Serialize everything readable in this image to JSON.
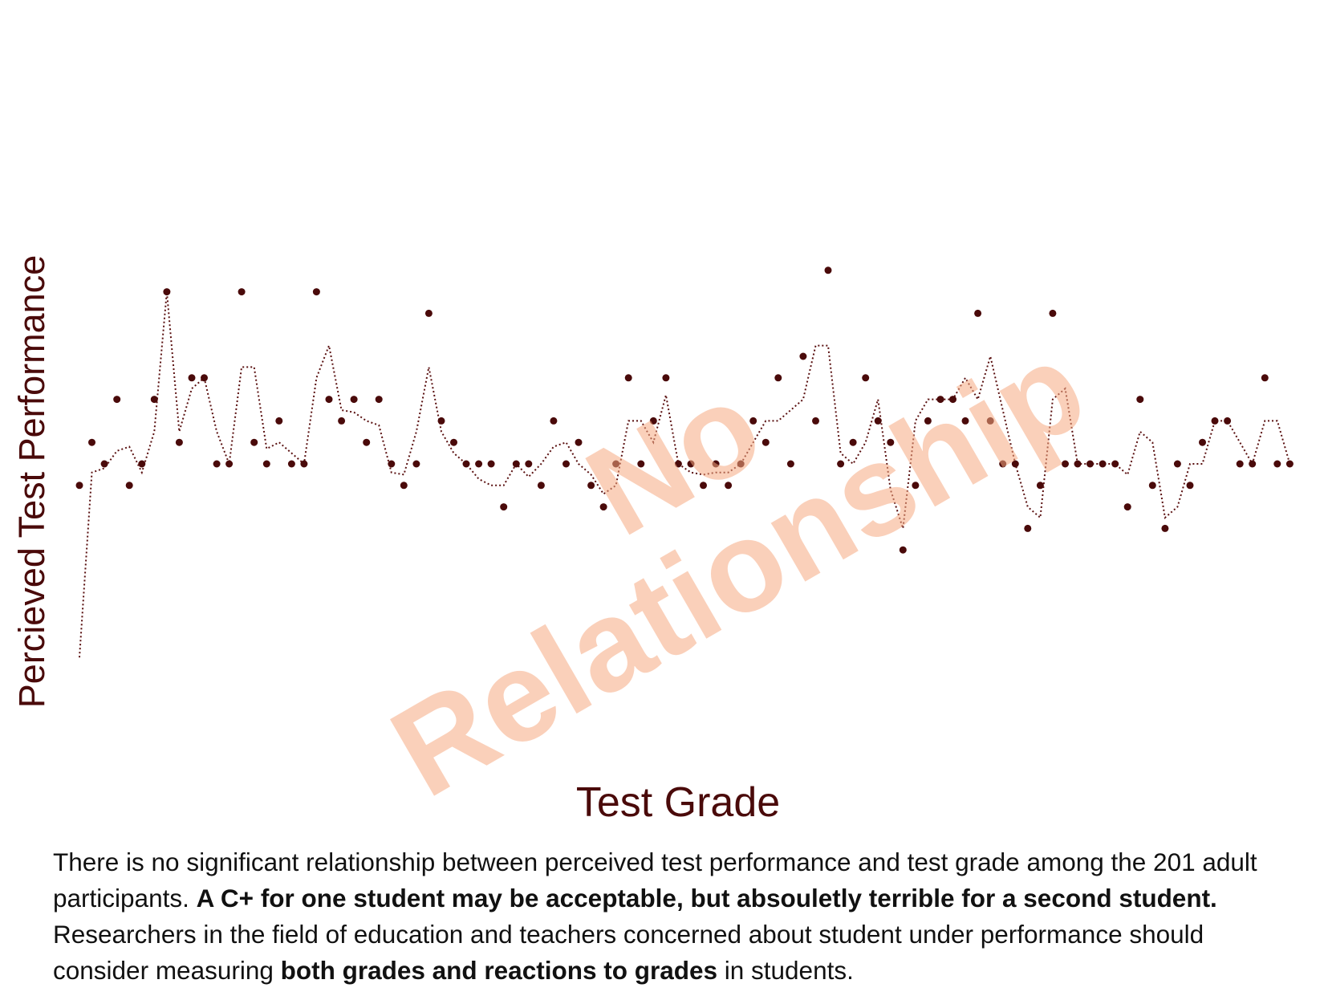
{
  "chart_data": {
    "type": "scatter",
    "xlabel": "Test Grade",
    "ylabel": "Percieved Test Performance",
    "grid": false,
    "legend": "none",
    "y_levels": [
      -9,
      -2,
      -1,
      0,
      1,
      2,
      3,
      4,
      5,
      6,
      7
    ],
    "points": [
      [
        1,
        -1
      ],
      [
        2,
        1
      ],
      [
        3,
        0
      ],
      [
        4,
        3
      ],
      [
        5,
        -1
      ],
      [
        6,
        0
      ],
      [
        7,
        3
      ],
      [
        8,
        8
      ],
      [
        9,
        1
      ],
      [
        10,
        4
      ],
      [
        11,
        4
      ],
      [
        12,
        0
      ],
      [
        13,
        0
      ],
      [
        14,
        8
      ],
      [
        15,
        1
      ],
      [
        16,
        0
      ],
      [
        17,
        2
      ],
      [
        18,
        0
      ],
      [
        19,
        0
      ],
      [
        20,
        8
      ],
      [
        21,
        3
      ],
      [
        22,
        2
      ],
      [
        23,
        3
      ],
      [
        24,
        1
      ],
      [
        25,
        3
      ],
      [
        26,
        0
      ],
      [
        27,
        -1
      ],
      [
        28,
        0
      ],
      [
        29,
        7
      ],
      [
        30,
        2
      ],
      [
        31,
        1
      ],
      [
        32,
        0
      ],
      [
        33,
        0
      ],
      [
        34,
        0
      ],
      [
        35,
        -2
      ],
      [
        36,
        0
      ],
      [
        37,
        0
      ],
      [
        38,
        -1
      ],
      [
        39,
        2
      ],
      [
        40,
        0
      ],
      [
        41,
        1
      ],
      [
        42,
        -1
      ],
      [
        43,
        -2
      ],
      [
        44,
        0
      ],
      [
        45,
        4
      ],
      [
        46,
        0
      ],
      [
        47,
        2
      ],
      [
        48,
        4
      ],
      [
        49,
        0
      ],
      [
        50,
        0
      ],
      [
        51,
        -1
      ],
      [
        52,
        0
      ],
      [
        53,
        -1
      ],
      [
        54,
        0
      ],
      [
        55,
        2
      ],
      [
        56,
        1
      ],
      [
        57,
        4
      ],
      [
        58,
        0
      ],
      [
        59,
        5
      ],
      [
        60,
        2
      ],
      [
        61,
        9
      ],
      [
        62,
        0
      ],
      [
        63,
        1
      ],
      [
        64,
        4
      ],
      [
        65,
        2
      ],
      [
        66,
        1
      ],
      [
        67,
        -4
      ],
      [
        68,
        -1
      ],
      [
        69,
        2
      ],
      [
        70,
        3
      ],
      [
        71,
        3
      ],
      [
        72,
        2
      ],
      [
        73,
        7
      ],
      [
        74,
        2
      ],
      [
        75,
        0
      ],
      [
        76,
        0
      ],
      [
        77,
        -3
      ],
      [
        78,
        -1
      ],
      [
        79,
        7
      ],
      [
        80,
        0
      ],
      [
        81,
        0
      ],
      [
        82,
        0
      ],
      [
        83,
        0
      ],
      [
        84,
        0
      ],
      [
        85,
        -2
      ],
      [
        86,
        3
      ],
      [
        87,
        -1
      ],
      [
        88,
        -3
      ],
      [
        89,
        0
      ],
      [
        90,
        -1
      ],
      [
        91,
        1
      ],
      [
        92,
        2
      ],
      [
        93,
        2
      ],
      [
        94,
        0
      ],
      [
        95,
        0
      ],
      [
        96,
        4
      ],
      [
        97,
        0
      ],
      [
        98,
        0
      ]
    ],
    "trend_line": [
      [
        1,
        -9
      ],
      [
        2,
        -0.4
      ],
      [
        3,
        -0.2
      ],
      [
        4,
        0.6
      ],
      [
        5,
        0.8
      ],
      [
        6,
        -0.4
      ],
      [
        7,
        1.5
      ],
      [
        8,
        8
      ],
      [
        9,
        1.5
      ],
      [
        10,
        3.5
      ],
      [
        11,
        4
      ],
      [
        12,
        1.5
      ],
      [
        13,
        0
      ],
      [
        14,
        4.5
      ],
      [
        15,
        4.5
      ],
      [
        16,
        0.7
      ],
      [
        17,
        1
      ],
      [
        18,
        0.5
      ],
      [
        19,
        0
      ],
      [
        20,
        4
      ],
      [
        21,
        5.5
      ],
      [
        22,
        2.5
      ],
      [
        23,
        2.4
      ],
      [
        24,
        2
      ],
      [
        25,
        1.8
      ],
      [
        26,
        -0.4
      ],
      [
        27,
        -0.5
      ],
      [
        28,
        1.5
      ],
      [
        29,
        4.5
      ],
      [
        30,
        1.5
      ],
      [
        31,
        0.5
      ],
      [
        32,
        0
      ],
      [
        33,
        -0.7
      ],
      [
        34,
        -1
      ],
      [
        35,
        -1
      ],
      [
        36,
        0
      ],
      [
        37,
        -0.6
      ],
      [
        38,
        0
      ],
      [
        39,
        0.8
      ],
      [
        40,
        1
      ],
      [
        41,
        0
      ],
      [
        42,
        -0.5
      ],
      [
        43,
        -1.4
      ],
      [
        44,
        -1
      ],
      [
        45,
        2
      ],
      [
        46,
        2
      ],
      [
        47,
        1
      ],
      [
        48,
        3.2
      ],
      [
        49,
        0
      ],
      [
        50,
        -0.4
      ],
      [
        51,
        -0.5
      ],
      [
        52,
        -0.4
      ],
      [
        53,
        -0.4
      ],
      [
        54,
        0
      ],
      [
        55,
        1
      ],
      [
        56,
        2
      ],
      [
        57,
        2
      ],
      [
        58,
        2.5
      ],
      [
        59,
        3
      ],
      [
        60,
        5.5
      ],
      [
        61,
        5.5
      ],
      [
        62,
        0.5
      ],
      [
        63,
        0
      ],
      [
        64,
        1
      ],
      [
        65,
        3
      ],
      [
        66,
        -1.2
      ],
      [
        67,
        -3
      ],
      [
        68,
        2
      ],
      [
        69,
        3
      ],
      [
        70,
        3
      ],
      [
        71,
        3
      ],
      [
        72,
        4
      ],
      [
        73,
        3
      ],
      [
        74,
        5
      ],
      [
        75,
        2.5
      ],
      [
        76,
        0
      ],
      [
        77,
        -2
      ],
      [
        78,
        -2.5
      ],
      [
        79,
        3
      ],
      [
        80,
        3.5
      ],
      [
        81,
        0
      ],
      [
        82,
        0
      ],
      [
        83,
        0
      ],
      [
        84,
        0
      ],
      [
        85,
        -0.5
      ],
      [
        86,
        1.5
      ],
      [
        87,
        1
      ],
      [
        88,
        -2.5
      ],
      [
        89,
        -2
      ],
      [
        90,
        0
      ],
      [
        91,
        0
      ],
      [
        92,
        2
      ],
      [
        93,
        2
      ],
      [
        94,
        1
      ],
      [
        95,
        0
      ],
      [
        96,
        2
      ],
      [
        97,
        2
      ],
      [
        98,
        0
      ]
    ],
    "colors": {
      "points": "#4a0a0a",
      "trend": "#5a1010",
      "watermark": "#f5aa82"
    }
  },
  "watermark": {
    "line1": "No",
    "line2": "Relationship"
  },
  "caption": {
    "part1": "There is no significant relationship between perceived test performance and test grade among the 201 adult participants. ",
    "bold1": "A C+ for one student may be acceptable, but absoulетly terrible for a second student.",
    "part2": " Researchers in the field of education and teachers concerned about student under performance should consider measuring ",
    "bold2": "both grades and reactions to grades",
    "part3": " in students."
  }
}
